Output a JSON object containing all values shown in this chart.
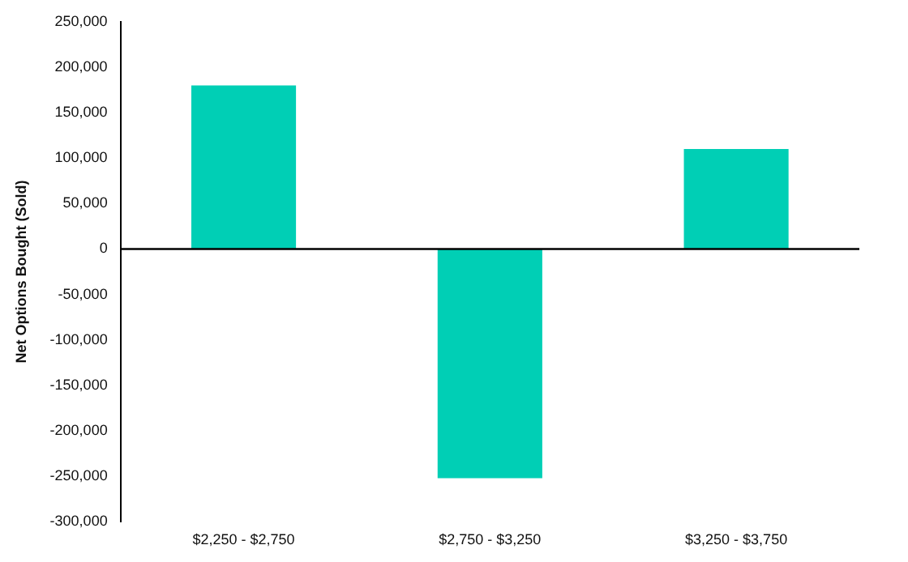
{
  "chart_data": {
    "type": "bar",
    "ylabel": "Net Options Bought (Sold)",
    "categories": [
      "$2,250 - $2,750",
      "$2,750 - $3,250",
      "$3,250 - $3,750"
    ],
    "values": [
      180000,
      -252000,
      110000
    ],
    "color": "#00cfb5",
    "ylim": [
      -300000,
      250000
    ],
    "yticks": [
      {
        "value": -300000,
        "label": "-300,000"
      },
      {
        "value": -250000,
        "label": "-250,000"
      },
      {
        "value": -200000,
        "label": "-200,000"
      },
      {
        "value": -150000,
        "label": "-150,000"
      },
      {
        "value": -100000,
        "label": "-100,000"
      },
      {
        "value": -50000,
        "label": "-50,000"
      },
      0,
      {
        "value": 50000,
        "label": "50,000"
      },
      {
        "value": 100000,
        "label": "100,000"
      },
      {
        "value": 150000,
        "label": "150,000"
      },
      {
        "value": 200000,
        "label": "200,000"
      },
      {
        "value": 250000,
        "label": "250,000"
      }
    ],
    "ref_lines": [
      {
        "axis": "y",
        "value": 0,
        "color": "#000000"
      }
    ]
  }
}
